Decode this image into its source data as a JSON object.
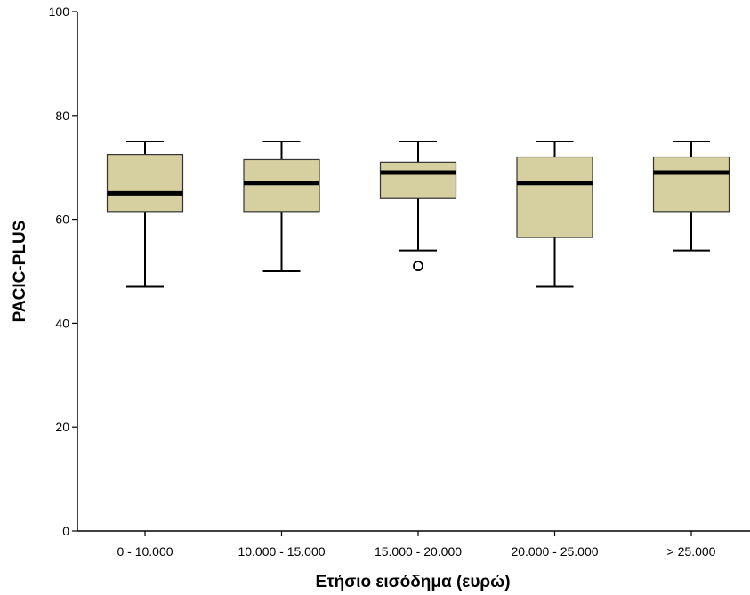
{
  "chart_data": {
    "type": "boxplot",
    "xlabel": "Ετήσιο εισόδημα (ευρώ)",
    "ylabel": "PACIC-PLUS",
    "ylim": [
      0,
      100
    ],
    "yticks": [
      0,
      20,
      40,
      60,
      80,
      100
    ],
    "grid": false,
    "box_color": "#d6cf9f",
    "categories": [
      "0 - 10.000",
      "10.000 - 15.000",
      "15.000 - 20.000",
      "20.000 - 25.000",
      "> 25.000"
    ],
    "boxes": [
      {
        "category": "0 - 10.000",
        "min": 47,
        "q1": 61.5,
        "median": 65,
        "q3": 72.5,
        "max": 75,
        "outliers": []
      },
      {
        "category": "10.000 - 15.000",
        "min": 50,
        "q1": 61.5,
        "median": 67,
        "q3": 71.5,
        "max": 75,
        "outliers": []
      },
      {
        "category": "15.000 - 20.000",
        "min": 54,
        "q1": 64,
        "median": 69,
        "q3": 71,
        "max": 75,
        "outliers": [
          51
        ]
      },
      {
        "category": "20.000 - 25.000",
        "min": 47,
        "q1": 56.5,
        "median": 67,
        "q3": 72,
        "max": 75,
        "outliers": []
      },
      {
        "category": "> 25.000",
        "min": 54,
        "q1": 61.5,
        "median": 69,
        "q3": 72,
        "max": 75,
        "outliers": []
      }
    ]
  }
}
